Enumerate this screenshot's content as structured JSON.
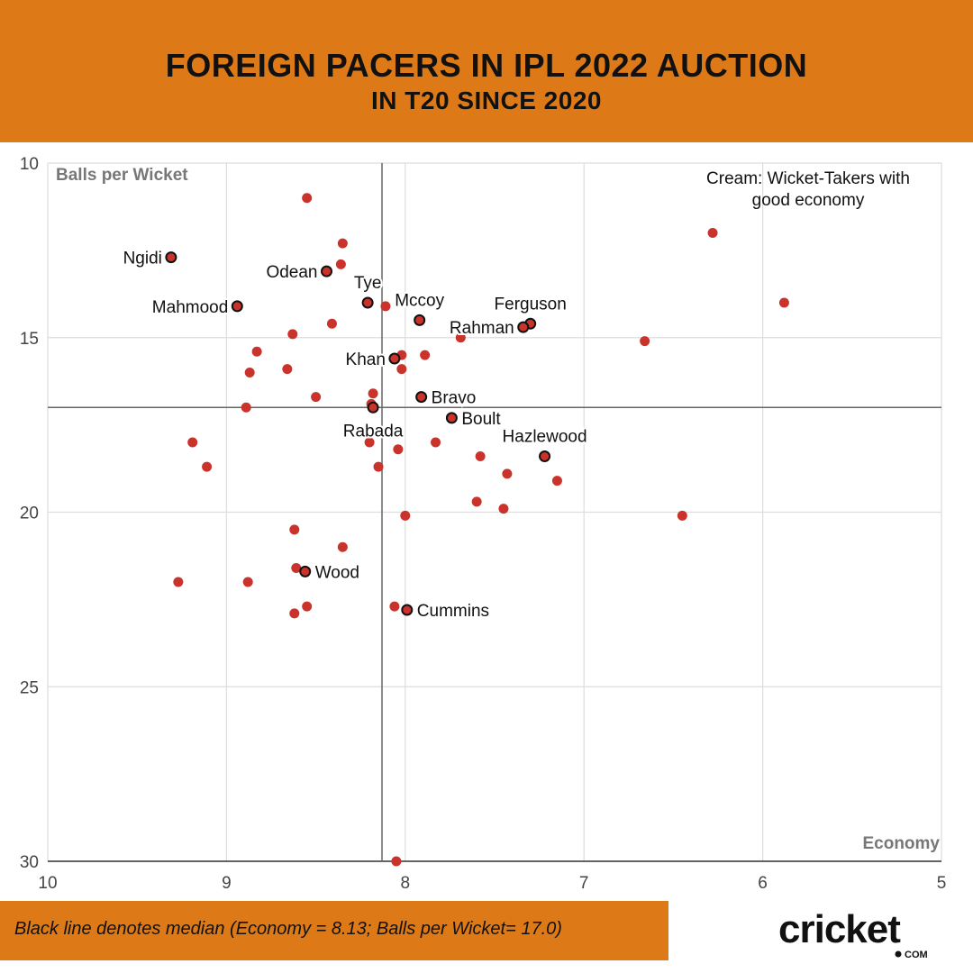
{
  "header": {
    "title": "FOREIGN PACERS IN IPL 2022 AUCTION",
    "subtitle": "IN T20 SINCE 2020"
  },
  "footer": {
    "note": "Black line denotes median (Economy = 8.13; Balls per Wicket= 17.0)",
    "logo_text": "cricket",
    "logo_sub": "COM"
  },
  "colors": {
    "banner": "#dd7a17",
    "point": "#c9332b",
    "highlight_stroke": "#111111",
    "grid": "#dddddd",
    "median": "#666666"
  },
  "chart_data": {
    "type": "scatter",
    "xlabel": "Economy",
    "ylabel": "Balls per Wicket",
    "xlim": [
      10,
      5
    ],
    "ylim": [
      30,
      10
    ],
    "x_reversed": true,
    "y_reversed": true,
    "xticks": [
      "10",
      "9",
      "8",
      "7",
      "6",
      "5"
    ],
    "yticks": [
      "10",
      "15",
      "20",
      "25",
      "30"
    ],
    "median": {
      "x": 8.13,
      "y": 17.0
    },
    "quadrant_annotation": "Cream: Wicket-Takers with good economy",
    "labeled_points": [
      {
        "name": "Ngidi",
        "x": 9.31,
        "y": 12.7,
        "anchor": "end"
      },
      {
        "name": "Odean",
        "x": 8.44,
        "y": 13.1,
        "anchor": "end"
      },
      {
        "name": "Tye",
        "x": 8.21,
        "y": 14.0,
        "anchor": "above"
      },
      {
        "name": "Mahmood",
        "x": 8.94,
        "y": 14.1,
        "anchor": "end"
      },
      {
        "name": "Mccoy",
        "x": 7.92,
        "y": 14.5,
        "anchor": "above"
      },
      {
        "name": "Ferguson",
        "x": 7.3,
        "y": 14.6,
        "anchor": "above"
      },
      {
        "name": "Rahman",
        "x": 7.34,
        "y": 14.7,
        "anchor": "end"
      },
      {
        "name": "Khan",
        "x": 8.06,
        "y": 15.6,
        "anchor": "end"
      },
      {
        "name": "Bravo",
        "x": 7.91,
        "y": 16.7,
        "anchor": "start"
      },
      {
        "name": "Rabada",
        "x": 8.18,
        "y": 17.0,
        "anchor": "below"
      },
      {
        "name": "Boult",
        "x": 7.74,
        "y": 17.3,
        "anchor": "start"
      },
      {
        "name": "Hazlewood",
        "x": 7.22,
        "y": 18.4,
        "anchor": "above"
      },
      {
        "name": "Wood",
        "x": 8.56,
        "y": 21.7,
        "anchor": "start"
      },
      {
        "name": "Cummins",
        "x": 7.99,
        "y": 22.8,
        "anchor": "start"
      }
    ],
    "points": [
      {
        "x": 8.55,
        "y": 11.0
      },
      {
        "x": 6.28,
        "y": 12.0
      },
      {
        "x": 8.35,
        "y": 12.3
      },
      {
        "x": 8.36,
        "y": 12.9
      },
      {
        "x": 8.11,
        "y": 14.1
      },
      {
        "x": 5.88,
        "y": 14.0
      },
      {
        "x": 8.41,
        "y": 14.6
      },
      {
        "x": 8.63,
        "y": 14.9
      },
      {
        "x": 7.69,
        "y": 15.0
      },
      {
        "x": 6.66,
        "y": 15.1
      },
      {
        "x": 8.83,
        "y": 15.4
      },
      {
        "x": 8.02,
        "y": 15.5
      },
      {
        "x": 7.89,
        "y": 15.5
      },
      {
        "x": 8.87,
        "y": 16.0
      },
      {
        "x": 8.66,
        "y": 15.9
      },
      {
        "x": 8.02,
        "y": 15.9
      },
      {
        "x": 8.18,
        "y": 16.6
      },
      {
        "x": 8.5,
        "y": 16.7
      },
      {
        "x": 8.19,
        "y": 16.9
      },
      {
        "x": 8.89,
        "y": 17.0
      },
      {
        "x": 9.19,
        "y": 18.0
      },
      {
        "x": 8.2,
        "y": 18.0
      },
      {
        "x": 7.83,
        "y": 18.0
      },
      {
        "x": 8.04,
        "y": 18.2
      },
      {
        "x": 7.58,
        "y": 18.4
      },
      {
        "x": 9.11,
        "y": 18.7
      },
      {
        "x": 8.15,
        "y": 18.7
      },
      {
        "x": 7.43,
        "y": 18.9
      },
      {
        "x": 7.15,
        "y": 19.1
      },
      {
        "x": 7.6,
        "y": 19.7
      },
      {
        "x": 7.45,
        "y": 19.9
      },
      {
        "x": 8.0,
        "y": 20.1
      },
      {
        "x": 6.45,
        "y": 20.1
      },
      {
        "x": 8.62,
        "y": 20.5
      },
      {
        "x": 8.35,
        "y": 21.0
      },
      {
        "x": 8.61,
        "y": 21.6
      },
      {
        "x": 9.27,
        "y": 22.0
      },
      {
        "x": 8.88,
        "y": 22.0
      },
      {
        "x": 8.55,
        "y": 22.7
      },
      {
        "x": 8.06,
        "y": 22.7
      },
      {
        "x": 8.62,
        "y": 22.9
      },
      {
        "x": 8.05,
        "y": 30.0
      }
    ]
  }
}
